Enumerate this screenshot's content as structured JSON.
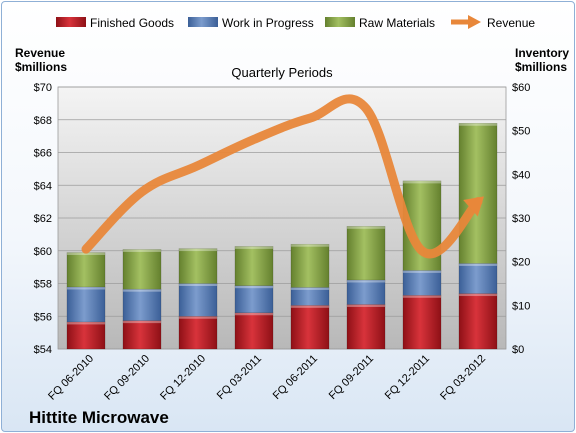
{
  "company": "Hittite Microwave",
  "chart_data": {
    "type": "bar",
    "stacked": true,
    "title": "Quarterly Periods",
    "categories": [
      "FQ 06-2010",
      "FQ 09-2010",
      "FQ 12-2010",
      "FQ 03-2011",
      "FQ 06-2011",
      "FQ 09-2011",
      "FQ 12-2011",
      "FQ 03-2012"
    ],
    "y_left": {
      "label_line1": "Revenue",
      "label_line2": "$millions",
      "ylim": [
        54,
        70
      ],
      "ticks": [
        "$54",
        "$56",
        "$58",
        "$60",
        "$62",
        "$64",
        "$66",
        "$68",
        "$70"
      ],
      "tick_values": [
        54,
        56,
        58,
        60,
        62,
        64,
        66,
        68,
        70
      ]
    },
    "y_right": {
      "label_line1": "Inventory",
      "label_line2": "$millions",
      "ylim": [
        0,
        60
      ],
      "ticks": [
        "$0",
        "$10",
        "$20",
        "$30",
        "$40",
        "$50",
        "$60"
      ],
      "tick_values": [
        0,
        10,
        20,
        30,
        40,
        50,
        60
      ]
    },
    "series": [
      {
        "name": "Finished Goods",
        "axis": "right",
        "color": "#c0202a",
        "values": [
          6.2,
          6.5,
          7.5,
          8.3,
          10.0,
          10.2,
          12.3,
          12.7
        ]
      },
      {
        "name": "Work in Progress",
        "axis": "right",
        "color": "#5a7fb8",
        "values": [
          8.0,
          7.2,
          7.5,
          6.2,
          4.1,
          5.6,
          5.7,
          6.9
        ]
      },
      {
        "name": "Raw Materials",
        "axis": "right",
        "color": "#8aa84a",
        "values": [
          7.9,
          9.1,
          8.0,
          9.0,
          9.9,
          12.3,
          20.5,
          32.1
        ]
      },
      {
        "name": "Revenue",
        "axis": "left",
        "type": "line",
        "color": "#e8873a",
        "values": [
          60.1,
          63.6,
          65.2,
          66.8,
          68.1,
          68.7,
          60.0,
          63.0
        ]
      }
    ],
    "grid": true,
    "legend": "top"
  }
}
